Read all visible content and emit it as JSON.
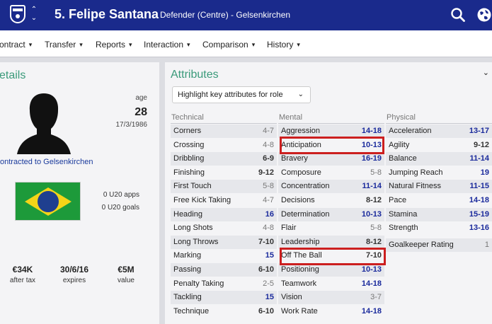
{
  "header": {
    "title": "5. Felipe Santana",
    "subtitle": "Defender (Centre) - Gelsenkirchen",
    "club_badge_icon": "club-crest-icon",
    "nav_icon": "up-down-arrows-icon",
    "search_icon": "search-icon",
    "globe_icon": "globe-icon",
    "bg_color": "#1a2a8c"
  },
  "tabs": [
    {
      "label": "ontract"
    },
    {
      "label": "Transfer"
    },
    {
      "label": "Reports"
    },
    {
      "label": "Interaction"
    },
    {
      "label": "Comparison"
    },
    {
      "label": "History"
    }
  ],
  "details": {
    "title": "etails",
    "age_label": "age",
    "age": "28",
    "dob": "17/3/1986",
    "contract_text": "ontracted to Gelsenkirchen",
    "nationality_flag": "brazil-flag",
    "u20_apps": "0 U20 apps",
    "u20_goals": "0 U20 goals",
    "stats": [
      {
        "value": "€34K",
        "label": "after tax"
      },
      {
        "value": "30/6/16",
        "label": "expires"
      },
      {
        "value": "€5M",
        "label": "value"
      }
    ]
  },
  "attributes": {
    "title": "Attributes",
    "dropdown_value": "Highlight key attributes for role",
    "columns": [
      {
        "heading": "Technical",
        "rows": [
          {
            "name": "Corners",
            "value": "4-7"
          },
          {
            "name": "Crossing",
            "value": "4-8"
          },
          {
            "name": "Dribbling",
            "value": "6-9"
          },
          {
            "name": "Finishing",
            "value": "9-12"
          },
          {
            "name": "First Touch",
            "value": "5-8"
          },
          {
            "name": "Free Kick Taking",
            "value": "4-7"
          },
          {
            "name": "Heading",
            "value": "16"
          },
          {
            "name": "Long Shots",
            "value": "4-8"
          },
          {
            "name": "Long Throws",
            "value": "7-10"
          },
          {
            "name": "Marking",
            "value": "15"
          },
          {
            "name": "Passing",
            "value": "6-10"
          },
          {
            "name": "Penalty Taking",
            "value": "2-5"
          },
          {
            "name": "Tackling",
            "value": "15"
          },
          {
            "name": "Technique",
            "value": "6-10"
          }
        ]
      },
      {
        "heading": "Mental",
        "rows": [
          {
            "name": "Aggression",
            "value": "14-18"
          },
          {
            "name": "Anticipation",
            "value": "10-13"
          },
          {
            "name": "Bravery",
            "value": "16-19"
          },
          {
            "name": "Composure",
            "value": "5-8"
          },
          {
            "name": "Concentration",
            "value": "11-14"
          },
          {
            "name": "Decisions",
            "value": "8-12"
          },
          {
            "name": "Determination",
            "value": "10-13"
          },
          {
            "name": "Flair",
            "value": "5-8"
          },
          {
            "name": "Leadership",
            "value": "8-12"
          },
          {
            "name": "Off The Ball",
            "value": "7-10"
          },
          {
            "name": "Positioning",
            "value": "10-13"
          },
          {
            "name": "Teamwork",
            "value": "14-18"
          },
          {
            "name": "Vision",
            "value": "3-7"
          },
          {
            "name": "Work Rate",
            "value": "14-18"
          }
        ]
      },
      {
        "heading": "Physical",
        "rows": [
          {
            "name": "Acceleration",
            "value": "13-17"
          },
          {
            "name": "Agility",
            "value": "9-12"
          },
          {
            "name": "Balance",
            "value": "11-14"
          },
          {
            "name": "Jumping Reach",
            "value": "19"
          },
          {
            "name": "Natural Fitness",
            "value": "11-15"
          },
          {
            "name": "Pace",
            "value": "14-18"
          },
          {
            "name": "Stamina",
            "value": "15-19"
          },
          {
            "name": "Strength",
            "value": "13-16"
          },
          {
            "name": "Goalkeeper Rating",
            "value": "1"
          }
        ]
      }
    ]
  }
}
